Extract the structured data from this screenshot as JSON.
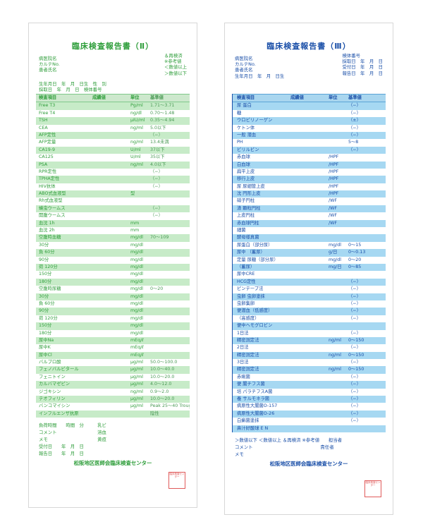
{
  "sheet1": {
    "title": "臨床検査報告書（Ⅱ）",
    "header_left": [
      "病医院名",
      "カルテNo.",
      "患者氏名",
      "生年月日　年　月　日生　性　別",
      "採取日　年　月　日　検体番号"
    ],
    "header_right": [
      "＆再検済",
      "※参考値",
      "＜数値以上",
      "＞数値以下"
    ],
    "col_headers": [
      "検査項目",
      "成績値",
      "単位",
      "基準値"
    ],
    "rows": [
      [
        "Free T3",
        "",
        "Pg/ml",
        "1.71〜3.71"
      ],
      [
        "Free T4",
        "",
        "ng/dl",
        "0.70〜1.48"
      ],
      [
        "TSH",
        "",
        "μIU/ml",
        "0.35〜4.94"
      ],
      [
        "CEA",
        "",
        "ng/ml",
        "5.0以下"
      ],
      [
        "AFP定性",
        "",
        "",
        "（−）"
      ],
      [
        "AFP定量",
        "",
        "ng/ml",
        "13.4未満"
      ],
      [
        "CA19-9",
        "",
        "U/ml",
        "37以下"
      ],
      [
        "CA125",
        "",
        "U/ml",
        "35以下"
      ],
      [
        "PSA",
        "",
        "ng/ml",
        "4.0以下"
      ],
      [
        "RPR定性",
        "",
        "",
        "（−）"
      ],
      [
        "TPHA定性",
        "",
        "",
        "（−）"
      ],
      [
        "HIV抗体",
        "",
        "",
        "（−）"
      ],
      [
        "ABO式血液型",
        "",
        "型",
        ""
      ],
      [
        "Rh式血液型",
        "",
        "",
        ""
      ],
      [
        "蟯虫ウームス",
        "",
        "",
        "（−）"
      ],
      [
        "開腹ウームス",
        "",
        "",
        "（−）"
      ],
      [
        "血沈 1h",
        "",
        "mm",
        ""
      ],
      [
        "血沈 2h",
        "",
        "mm",
        ""
      ],
      [
        "空腹時血糖",
        "",
        "mg/dl",
        "70〜109"
      ],
      [
        "30分",
        "",
        "mg/dl",
        ""
      ],
      [
        "負 60分",
        "",
        "mg/dl",
        ""
      ],
      [
        "90分",
        "",
        "mg/dl",
        ""
      ],
      [
        "荷 120分",
        "",
        "mg/dl",
        ""
      ],
      [
        "150分",
        "",
        "mg/dl",
        ""
      ],
      [
        "180分",
        "",
        "mg/dl",
        ""
      ],
      [
        "空腹時尿糖",
        "",
        "mg/dl",
        "0〜20"
      ],
      [
        "30分",
        "",
        "mg/dl",
        ""
      ],
      [
        "負 60分",
        "",
        "mg/dl",
        ""
      ],
      [
        "90分",
        "",
        "mg/dl",
        ""
      ],
      [
        "荷 120分",
        "",
        "mg/dl",
        ""
      ],
      [
        "150分",
        "",
        "mg/dl",
        ""
      ],
      [
        "180分",
        "",
        "mg/dl",
        ""
      ],
      [
        "尿中Na",
        "",
        "mEq/ℓ",
        ""
      ],
      [
        "尿中K",
        "",
        "mEq/ℓ",
        ""
      ],
      [
        "尿中Cl",
        "",
        "mEq/ℓ",
        ""
      ],
      [
        "バルプロ酸",
        "",
        "μg/ml",
        "50.0〜100.0"
      ],
      [
        "フェノバルビタール",
        "",
        "μg/ml",
        "10.0〜40.0"
      ],
      [
        "フェニトイン",
        "",
        "μg/ml",
        "10.0〜20.0"
      ],
      [
        "カルバマゼピン",
        "",
        "μg/ml",
        "4.0〜12.0"
      ],
      [
        "ジゴキシン",
        "",
        "ng/ml",
        "0.9〜2.0"
      ],
      [
        "テオフィリン",
        "",
        "μg/ml",
        "10.0〜20.0"
      ],
      [
        "バンコマイシン",
        "",
        "μg/ml",
        "Peak 25〜40 Trough 5〜10"
      ],
      [
        "インフルエンザ抗原",
        "",
        "",
        "陰性"
      ]
    ],
    "footer": [
      "負荷時間　　時間　分　　　乳ビ",
      "コメント　　　　　　　　　溶血",
      "メモ　　　　　　　　　　　黄疸",
      "受付日　　年　月　日",
      "報告日　　年　月　日"
    ],
    "org": "松阪地区医師会臨床検査センター",
    "stamp": "臨床検査センター"
  },
  "sheet2": {
    "title": "臨床検査報告書（Ⅲ）",
    "header_left": [
      "病医院名",
      "カルテNo.",
      "患者氏名",
      "生年月日　年　月　日生"
    ],
    "header_right": [
      "検体番号",
      "採取日　年　月　日",
      "受付日　年　月　日",
      "報告日　年　月　日"
    ],
    "col_headers": [
      "検査項目",
      "成績値",
      "単位",
      "基準値"
    ],
    "rows": [
      [
        "尿 蛋白",
        "",
        "",
        "（−）"
      ],
      [
        "糖",
        "",
        "",
        "（−）"
      ],
      [
        "ウロビリノーゲン",
        "",
        "",
        "（±）"
      ],
      [
        "ケトン体",
        "",
        "",
        "（−）"
      ],
      [
        "一般 潜血",
        "",
        "",
        "（−）"
      ],
      [
        "PH",
        "",
        "",
        "5〜8"
      ],
      [
        "ビリルビン",
        "",
        "",
        "（−）"
      ],
      [
        "赤血球",
        "",
        "/HPF",
        ""
      ],
      [
        "白血球",
        "",
        "/HPF",
        ""
      ],
      [
        "扁平上皮",
        "",
        "/HPF",
        ""
      ],
      [
        "移行上皮",
        "",
        "/HPF",
        ""
      ],
      [
        "尿 尿細管上皮",
        "",
        "/HPF",
        ""
      ],
      [
        "沈 円形上皮",
        "",
        "/HPF",
        ""
      ],
      [
        "硝子円柱",
        "",
        "/WF",
        ""
      ],
      [
        "渣 顆粒円柱",
        "",
        "/WF",
        ""
      ],
      [
        "上皮円柱",
        "",
        "/WF",
        ""
      ],
      [
        "赤血球円柱",
        "",
        "/WF",
        ""
      ],
      [
        "細菌",
        "",
        "",
        ""
      ],
      [
        "酵母様真菌",
        "",
        "",
        ""
      ],
      [
        "尿蛋白（部分尿）",
        "",
        "mg/dl",
        "0〜15"
      ],
      [
        "尿中 （蓄尿）",
        "",
        "g/日",
        "0〜0.13"
      ],
      [
        "定量 尿糖（部分尿）",
        "",
        "mg/dl",
        "0〜20"
      ],
      [
        "（蓄尿）",
        "",
        "mg/日",
        "0〜85"
      ],
      [
        "尿中CRE",
        "",
        "",
        ""
      ],
      [
        "HCG定性",
        "",
        "",
        "（−）"
      ],
      [
        "ピンテープ法",
        "",
        "",
        "（−）"
      ],
      [
        "虫卵 虫卵塗抹",
        "",
        "",
        "（−）"
      ],
      [
        "虫卵集卵",
        "",
        "",
        "（−）"
      ],
      [
        "便潜血（低感度）",
        "",
        "",
        "（−）"
      ],
      [
        "（高感度）",
        "",
        "",
        "（−）"
      ],
      [
        "便中ヘモグロビン",
        "",
        "",
        ""
      ],
      [
        "1日法",
        "",
        "",
        "（−）"
      ],
      [
        "精密測定法",
        "",
        "ng/ml",
        "0〜150"
      ],
      [
        "2日法",
        "",
        "",
        "（−）"
      ],
      [
        "精密測定法",
        "",
        "ng/ml",
        "0〜150"
      ],
      [
        "3日法",
        "",
        "",
        "（−）"
      ],
      [
        "精密測定法",
        "",
        "ng/ml",
        "0〜150"
      ],
      [
        "赤痢菌",
        "",
        "",
        "（−）"
      ],
      [
        "便 腸チフス菌",
        "",
        "",
        "（−）"
      ],
      [
        "培 パラチフスA菌",
        "",
        "",
        "（−）"
      ],
      [
        "養 サルモネラ菌",
        "",
        "",
        "（−）"
      ],
      [
        "病原性大腸菌O-157",
        "",
        "",
        "（−）"
      ],
      [
        "病原性大腸菌O-26",
        "",
        "",
        "（−）"
      ],
      [
        "白癬菌塗抹",
        "",
        "",
        "（−）"
      ],
      [
        "鼻汁好酸球 E N",
        "",
        "",
        ""
      ]
    ],
    "footer": [
      "＞数値以下 ＜数値以上 ＆再検済 ※参考値　　担当者",
      "コメント　　　　　　　　　　　　　　　責任者",
      "メモ"
    ],
    "org": "松阪地区医師会臨床検査センター",
    "stamp": "臨床検査センター"
  }
}
